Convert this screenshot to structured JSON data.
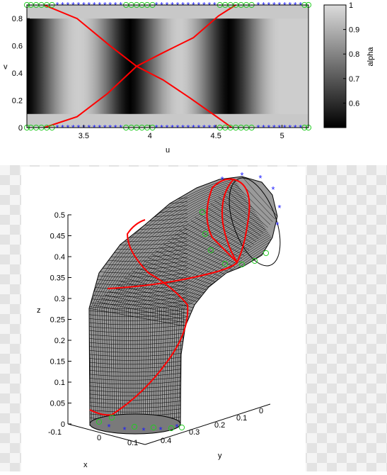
{
  "chart_data": [
    {
      "type": "heatmap",
      "xlabel": "u",
      "ylabel": "v",
      "xlim": [
        3.07,
        5.2
      ],
      "ylim": [
        0,
        0.9
      ],
      "xticks": [
        "3.5",
        "4",
        "4.5",
        "5"
      ],
      "yticks": [
        "0",
        "0.2",
        "0.4",
        "0.6",
        "0.8"
      ],
      "colorbar": {
        "label": "alpha",
        "ticks": [
          "0.6",
          "0.7",
          "0.8",
          "0.9",
          "1"
        ],
        "range": [
          0.5,
          1.0
        ]
      },
      "alpha_dark_centers_u": [
        3.07,
        3.85,
        4.6
      ],
      "band_v_ranges": [
        [
          0,
          0.1
        ],
        [
          0.8,
          0.9
        ]
      ],
      "curves": [
        {
          "color": "#ff0000",
          "points": [
            [
              3.2,
              0.9
            ],
            [
              3.45,
              0.8
            ],
            [
              3.7,
              0.6
            ],
            [
              3.9,
              0.45
            ],
            [
              4.1,
              0.35
            ],
            [
              4.3,
              0.22
            ],
            [
              4.52,
              0.07
            ],
            [
              4.62,
              0
            ]
          ]
        },
        {
          "color": "#ff0000",
          "points": [
            [
              3.2,
              0
            ],
            [
              3.45,
              0.08
            ],
            [
              3.68,
              0.25
            ],
            [
              3.9,
              0.45
            ],
            [
              4.1,
              0.55
            ],
            [
              4.33,
              0.66
            ],
            [
              4.52,
              0.82
            ],
            [
              4.65,
              0.9
            ]
          ]
        }
      ],
      "markers": {
        "blue_star_u": [
          3.3,
          3.34,
          3.38,
          3.42,
          3.46,
          3.5,
          3.54,
          3.58,
          3.62,
          3.66,
          3.7,
          3.74,
          3.78,
          4.05,
          4.09,
          4.13,
          4.17,
          4.21,
          4.25,
          4.29,
          4.33,
          4.37,
          4.41,
          4.45,
          4.49,
          4.82,
          4.86,
          4.9,
          4.94,
          4.98,
          5.02,
          5.06,
          5.1,
          5.14
        ],
        "green_circle_u": [
          3.07,
          3.1,
          3.14,
          3.18,
          3.22,
          3.26,
          3.82,
          3.86,
          3.9,
          3.94,
          3.98,
          4.02,
          4.53,
          4.57,
          4.61,
          4.65,
          4.69,
          4.73,
          4.77,
          5.17,
          5.2
        ],
        "v_levels": [
          0,
          0.9
        ]
      }
    },
    {
      "type": "surface",
      "xlabel": "x",
      "ylabel": "y",
      "zlabel": "z",
      "zticks": [
        "0",
        "0.05",
        "0.1",
        "0.15",
        "0.2",
        "0.25",
        "0.3",
        "0.35",
        "0.4",
        "0.45",
        "0.5"
      ],
      "xticks": [
        "-0.1",
        "0",
        "0.1"
      ],
      "yticks": [
        "0.4",
        "0.3",
        "0.2",
        "0.1",
        "0"
      ],
      "mesh_color": "#000000",
      "surface_color": "#9a9a9a"
    }
  ]
}
